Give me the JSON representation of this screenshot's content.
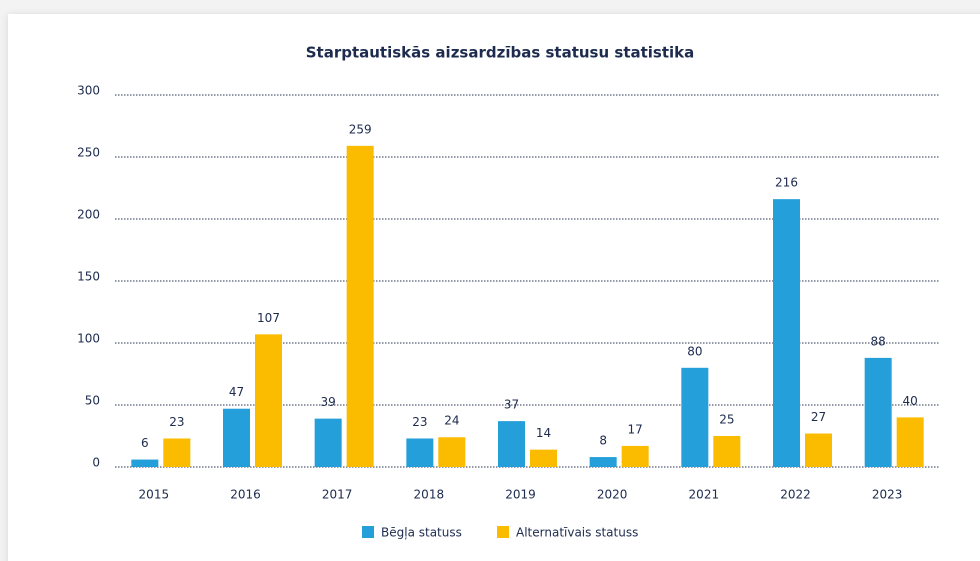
{
  "chart_data": {
    "type": "bar",
    "title": "Starptautiskās aizsardzības statusu statistika",
    "categories": [
      "2015",
      "2016",
      "2017",
      "2018",
      "2019",
      "2020",
      "2021",
      "2022",
      "2023"
    ],
    "series": [
      {
        "name": "Bēgļa statuss",
        "color": "#249fd9",
        "values": [
          6,
          47,
          39,
          23,
          37,
          8,
          80,
          216,
          88
        ]
      },
      {
        "name": "Alternatīvais statuss",
        "color": "#fbbc00",
        "values": [
          23,
          107,
          259,
          24,
          14,
          17,
          25,
          27,
          40
        ]
      }
    ],
    "ylim": [
      0,
      300
    ],
    "yticks": [
      0,
      50,
      100,
      150,
      200,
      250,
      300
    ],
    "grid": true,
    "legend": "bottom"
  }
}
